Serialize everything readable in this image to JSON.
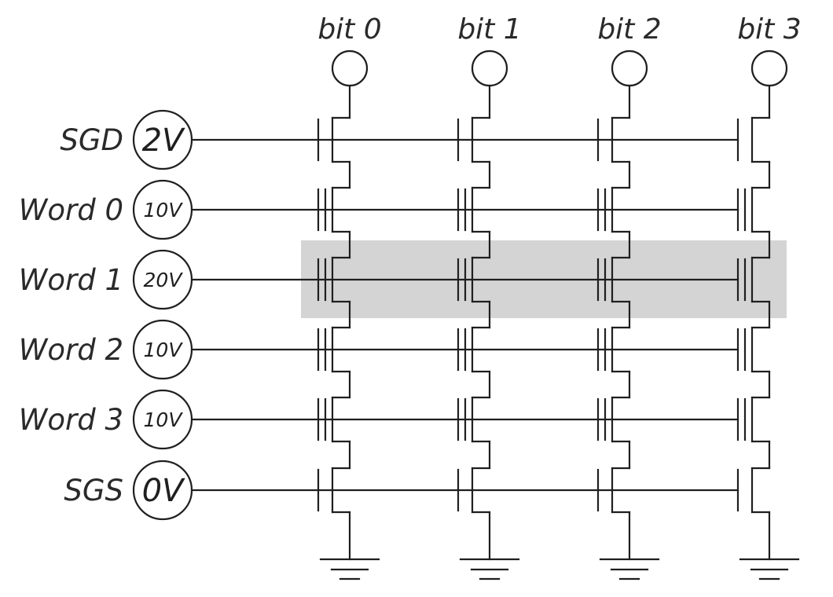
{
  "bits": [
    {
      "label": "bit 0"
    },
    {
      "label": "bit 1"
    },
    {
      "label": "bit 2"
    },
    {
      "label": "bit 3"
    }
  ],
  "rows": [
    {
      "label": "SGD",
      "voltage": "2V",
      "type": "select",
      "color": "#a9d2cb"
    },
    {
      "label": "Word 0",
      "voltage": "10V",
      "type": "cell",
      "color": "#a9d2cb"
    },
    {
      "label": "Word 1",
      "voltage": "20V",
      "type": "cell",
      "color": "#f2c12e",
      "highlighted": true
    },
    {
      "label": "Word 2",
      "voltage": "10V",
      "type": "cell",
      "color": "#a9d2cb"
    },
    {
      "label": "Word 3",
      "voltage": "10V",
      "type": "cell",
      "color": "#a9d2cb"
    },
    {
      "label": "SGS",
      "voltage": "0V",
      "type": "select",
      "color": "#a9d2cb"
    }
  ],
  "colors": {
    "highlight": "#d4d4d4",
    "wire": "#1f1f1f",
    "text": "#2a2a2a"
  }
}
